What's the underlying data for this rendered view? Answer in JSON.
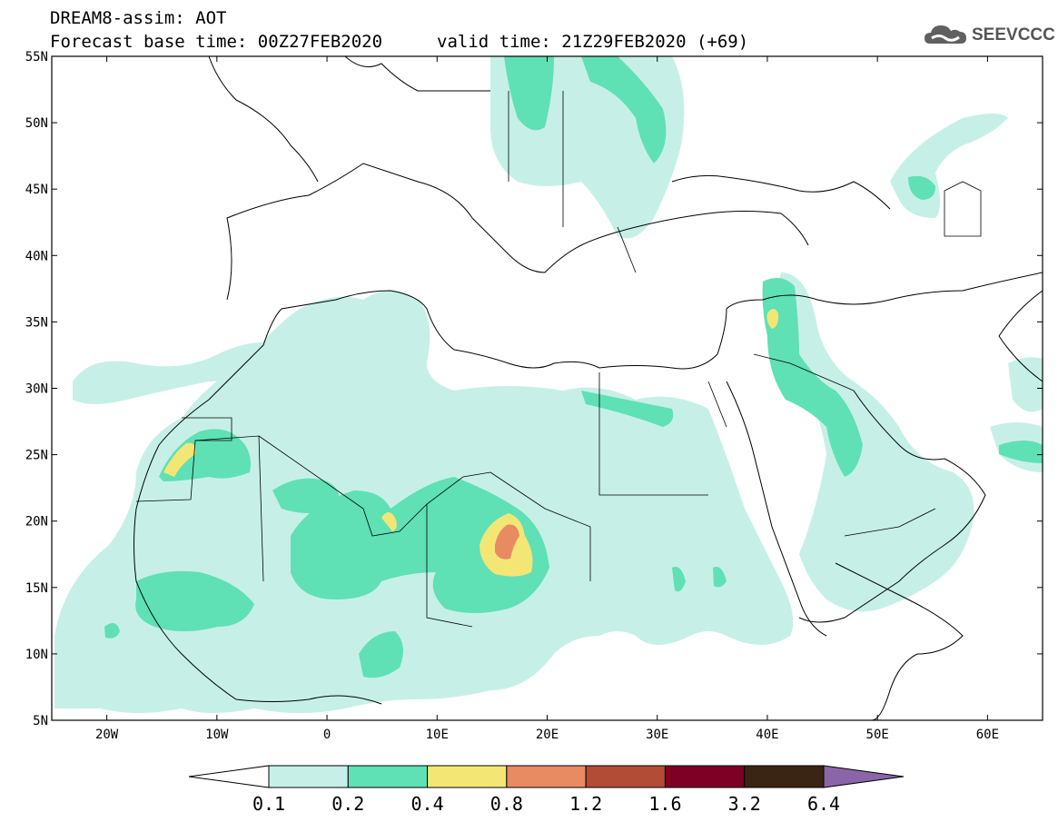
{
  "header": {
    "line1": "DREAM8-assim: AOT",
    "line2": "Forecast base time: 00Z27FEB2020",
    "line3": "valid time: 21Z29FEB2020 (+69)"
  },
  "logo": {
    "text": "SEEVCCC",
    "icon": "cloud-logo-icon"
  },
  "map": {
    "lat_labels": [
      "55N",
      "50N",
      "45N",
      "40N",
      "35N",
      "30N",
      "25N",
      "20N",
      "15N",
      "10N",
      "5N"
    ],
    "lon_labels": [
      "20W",
      "10W",
      "0",
      "10E",
      "20E",
      "30E",
      "40E",
      "50E",
      "60E"
    ],
    "lat_range": [
      5,
      55
    ],
    "lon_range": [
      -25,
      65
    ]
  },
  "colorbar": {
    "colors": [
      "#ffffff",
      "#c6f0e7",
      "#5fe0b5",
      "#f4e675",
      "#e88a62",
      "#b24c37",
      "#7e0024",
      "#3a2414",
      "#8a66a8"
    ],
    "labels": [
      "0.1",
      "0.2",
      "0.4",
      "0.8",
      "1.2",
      "1.6",
      "3.2",
      "6.4"
    ]
  }
}
